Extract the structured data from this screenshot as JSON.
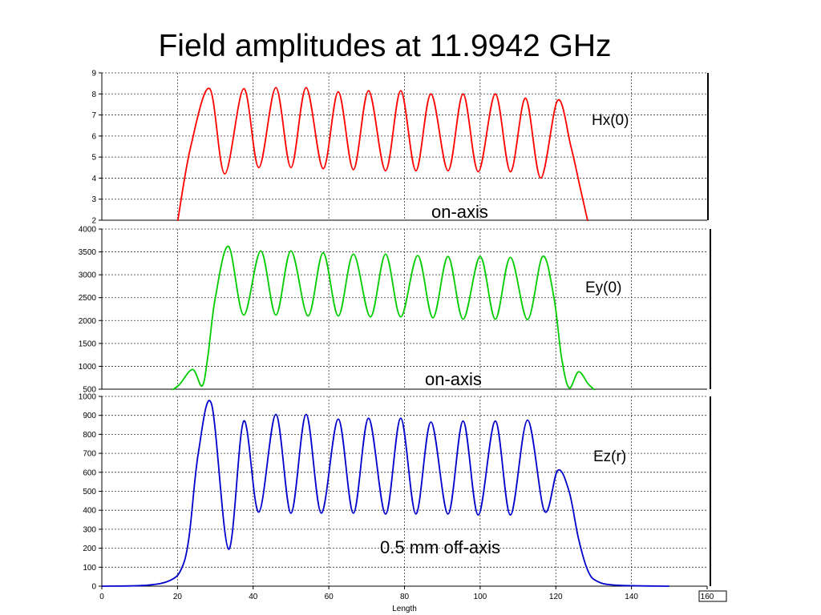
{
  "slide": {
    "title": "Field amplitudes at 11.9942 GHz"
  },
  "chart_data": [
    {
      "type": "line",
      "series": [
        {
          "name": "Hx(0)",
          "color": "#ff0000",
          "peaks": [
            8.25,
            8.25,
            8.3,
            8.3,
            8.1,
            8.15,
            8.15,
            8.0,
            8.0,
            8.0,
            7.8,
            7.7
          ],
          "troughs": [
            4.2,
            4.5,
            4.5,
            4.45,
            4.4,
            4.35,
            4.35,
            4.35,
            4.3,
            4.3,
            4.0
          ]
        }
      ],
      "x_range": [
        0,
        160
      ],
      "ylim": [
        2,
        9
      ],
      "yticks": [
        2,
        3,
        4,
        5,
        6,
        7,
        8,
        9
      ],
      "grid": true,
      "annotations": [
        "Hx(0)",
        "on-axis"
      ]
    },
    {
      "type": "line",
      "series": [
        {
          "name": "Ey(0)",
          "color": "#00cc00",
          "peaks": [
            3620,
            3520,
            3520,
            3480,
            3450,
            3450,
            3420,
            3400,
            3400,
            3380,
            3400
          ],
          "troughs": [
            2120,
            2120,
            2100,
            2100,
            2080,
            2080,
            2060,
            2030,
            2030,
            2020
          ]
        }
      ],
      "x_range": [
        0,
        160
      ],
      "ylim": [
        500,
        4000
      ],
      "yticks": [
        500,
        1000,
        1500,
        2000,
        2500,
        3000,
        3500,
        4000
      ],
      "grid": true,
      "annotations": [
        "Ey(0)",
        "on-axis"
      ]
    },
    {
      "type": "line",
      "series": [
        {
          "name": "Ez(r)",
          "color": "#0000cc",
          "peaks": [
            960,
            870,
            905,
            905,
            880,
            885,
            885,
            865,
            870,
            870,
            875,
            610
          ],
          "troughs": [
            195,
            390,
            385,
            385,
            385,
            380,
            380,
            380,
            375,
            375,
            395
          ]
        }
      ],
      "x_range": [
        0,
        160
      ],
      "xticks": [
        0,
        20,
        40,
        60,
        80,
        100,
        120,
        140,
        160
      ],
      "xlabel": "Length",
      "ylim": [
        0,
        1000
      ],
      "yticks": [
        0,
        100,
        200,
        300,
        400,
        500,
        600,
        700,
        800,
        900,
        1000
      ],
      "grid": true,
      "annotations": [
        "Ez(r)",
        "0.5 mm off-axis"
      ]
    }
  ]
}
